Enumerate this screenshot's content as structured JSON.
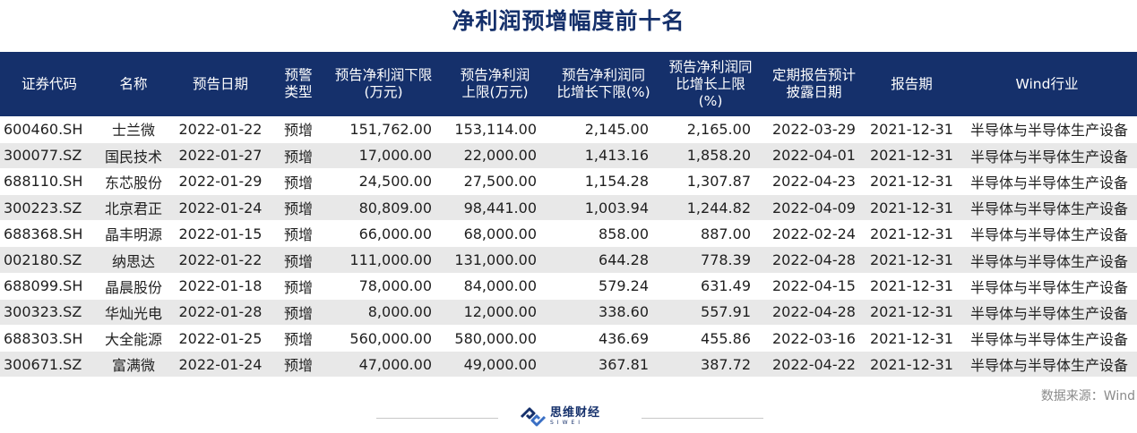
{
  "title": "净利润预增幅度前十名",
  "headers": [
    "证券代码",
    "名称",
    "预告日期",
    "预警\n类型",
    "预告净利润下限\n(万元)",
    "预告净利润\n上限(万元)",
    "预告净利润同\n比增长下限(%)",
    "预告净利润同\n比增长上限\n(%)",
    "定期报告预计\n披露日期",
    "报告期",
    "Wind行业"
  ],
  "rows": [
    [
      "600460.SH",
      "士兰微",
      "2022-01-22",
      "预增",
      "151,762.00",
      "153,114.00",
      "2,145.00",
      "2,165.00",
      "2022-03-29",
      "2021-12-31",
      "半导体与半导体生产设备"
    ],
    [
      "300077.SZ",
      "国民技术",
      "2022-01-27",
      "预增",
      "17,000.00",
      "22,000.00",
      "1,413.16",
      "1,858.20",
      "2022-04-01",
      "2021-12-31",
      "半导体与半导体生产设备"
    ],
    [
      "688110.SH",
      "东芯股份",
      "2022-01-29",
      "预增",
      "24,500.00",
      "27,500.00",
      "1,154.28",
      "1,307.87",
      "2022-04-23",
      "2021-12-31",
      "半导体与半导体生产设备"
    ],
    [
      "300223.SZ",
      "北京君正",
      "2022-01-24",
      "预增",
      "80,809.00",
      "98,441.00",
      "1,003.94",
      "1,244.82",
      "2022-04-09",
      "2021-12-31",
      "半导体与半导体生产设备"
    ],
    [
      "688368.SH",
      "晶丰明源",
      "2022-01-15",
      "预增",
      "66,000.00",
      "68,000.00",
      "858.00",
      "887.00",
      "2022-02-24",
      "2021-12-31",
      "半导体与半导体生产设备"
    ],
    [
      "002180.SZ",
      "纳思达",
      "2022-01-22",
      "预增",
      "111,000.00",
      "131,000.00",
      "644.28",
      "778.39",
      "2022-04-28",
      "2021-12-31",
      "半导体与半导体生产设备"
    ],
    [
      "688099.SH",
      "晶晨股份",
      "2022-01-18",
      "预增",
      "78,000.00",
      "84,000.00",
      "579.24",
      "631.49",
      "2022-04-15",
      "2021-12-31",
      "半导体与半导体生产设备"
    ],
    [
      "300323.SZ",
      "华灿光电",
      "2022-01-28",
      "预增",
      "8,000.00",
      "12,000.00",
      "338.60",
      "557.91",
      "2022-04-28",
      "2021-12-31",
      "半导体与半导体生产设备"
    ],
    [
      "688303.SH",
      "大全能源",
      "2022-01-25",
      "预增",
      "560,000.00",
      "580,000.00",
      "436.69",
      "455.86",
      "2022-03-16",
      "2021-12-31",
      "半导体与半导体生产设备"
    ],
    [
      "300671.SZ",
      "富满微",
      "2022-01-24",
      "预增",
      "47,000.00",
      "49,000.00",
      "367.81",
      "387.72",
      "2022-04-22",
      "2021-12-31",
      "半导体与半导体生产设备"
    ]
  ],
  "source": "数据来源：Wind",
  "logo": {
    "name": "思维财经",
    "sub": "SIWEI"
  },
  "colors": {
    "header_bg": "#15306b",
    "title": "#15306b",
    "row_alt": "#e8e8e8"
  }
}
